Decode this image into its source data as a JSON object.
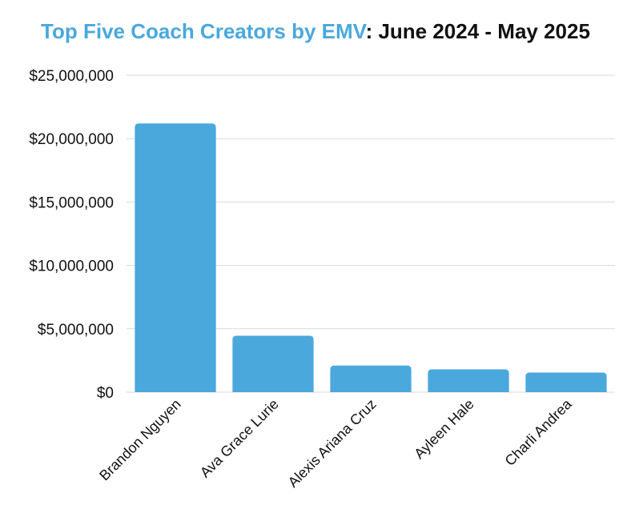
{
  "chart_data": {
    "type": "bar",
    "title_highlight": "Top Five Coach Creators by EMV",
    "title_rest": ": June 2024 - May 2025",
    "categories": [
      "Brandon Nguyen",
      "Ava Grace Lurie",
      "Alexis Ariana Cruz",
      "Ayleen Hale",
      "Charli Andrea"
    ],
    "values": [
      21200000,
      4450000,
      2100000,
      1800000,
      1550000
    ],
    "ylim": [
      0,
      25000000
    ],
    "yticks": [
      0,
      5000000,
      10000000,
      15000000,
      20000000,
      25000000
    ],
    "ytick_labels": [
      "$0",
      "$5,000,000",
      "$10,000,000",
      "$15,000,000",
      "$20,000,000",
      "$25,000,000"
    ],
    "xlabel": "",
    "ylabel": "",
    "grid": true,
    "legend": "none",
    "bar_color": "#4aa8dd",
    "grid_color": "#d9d9d9"
  }
}
